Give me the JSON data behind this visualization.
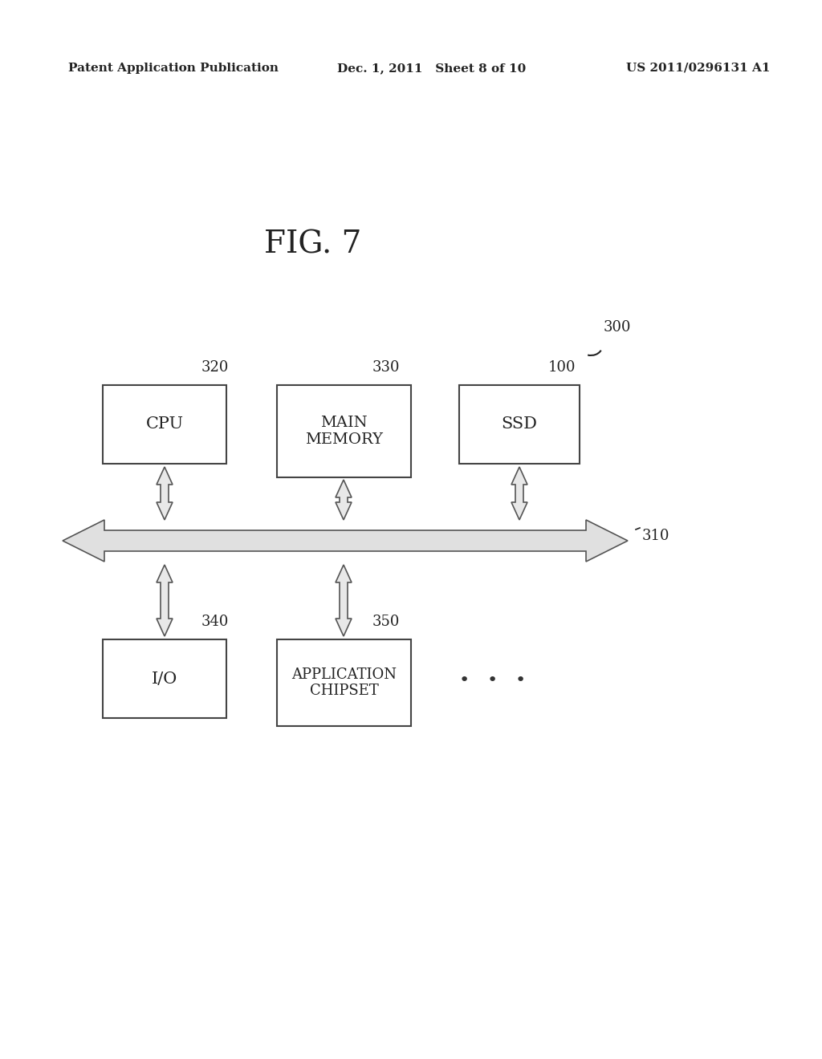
{
  "bg_color": "#ffffff",
  "header_left": "Patent Application Publication",
  "header_mid": "Dec. 1, 2011   Sheet 8 of 10",
  "header_right": "US 2011/0296131 A1",
  "fig_label": "FIG. 7",
  "label_300": "300",
  "label_310": "310",
  "label_320": "320",
  "label_330": "330",
  "label_100": "100",
  "label_340": "340",
  "label_350": "350",
  "box_cpu_label": "CPU",
  "box_main_memory_label": "MAIN\nMEMORY",
  "box_ssd_label": "SSD",
  "box_io_label": "I/O",
  "box_app_chipset_label": "APPLICATION\nCHIPSET",
  "box_color": "#ffffff",
  "box_edge_color": "#444444",
  "arrow_edge_color": "#555555",
  "text_color": "#222222"
}
